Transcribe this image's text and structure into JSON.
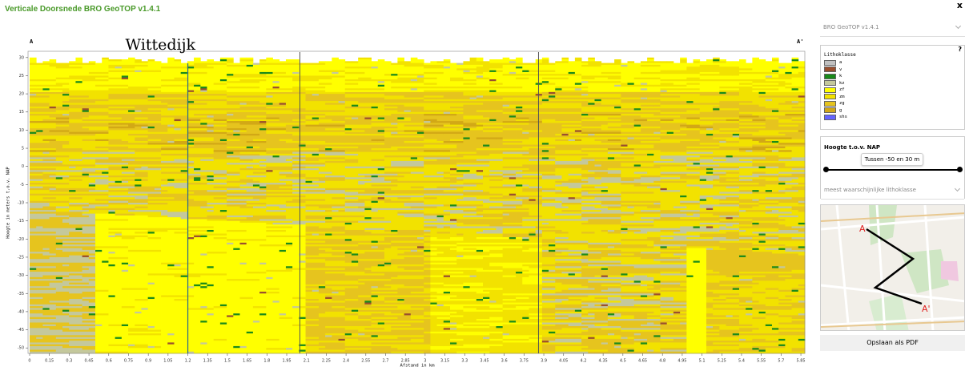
{
  "header": {
    "title": "Verticale Doorsnede BRO GeoTOP v1.4.1"
  },
  "cross_section": {
    "start_label": "A",
    "end_label": "A'",
    "annotation": "Wittedijk",
    "annotation_x": 1.2,
    "section_breaks": [
      2.05,
      3.86
    ],
    "ylabel": "Hoogte in meters t.o.v. NAP",
    "xlabel": "Afstand in km",
    "xlim": [
      0,
      5.88
    ],
    "ylim": [
      -51.5,
      31.5
    ],
    "yticks": [
      30,
      25,
      20,
      15,
      10,
      5,
      0,
      -5,
      -10,
      -15,
      -20,
      -25,
      -30,
      -35,
      -40,
      -45,
      -50
    ],
    "xticks": [
      0,
      0.15,
      0.3,
      0.45,
      0.6,
      0.75,
      0.9,
      1.05,
      1.2,
      1.35,
      1.5,
      1.65,
      1.8,
      1.95,
      2.1,
      2.25,
      2.4,
      2.55,
      2.7,
      2.85,
      3,
      3.15,
      3.3,
      3.45,
      3.6,
      3.75,
      3.9,
      4.05,
      4.2,
      4.35,
      4.5,
      4.65,
      4.8,
      4.95,
      5.1,
      5.25,
      5.4,
      5.55,
      5.7,
      5.85
    ]
  },
  "sidebar": {
    "close": "x",
    "model_select": "BRO GeoTOP v1.4.1",
    "legend": {
      "help": "?",
      "title": "Lithoklasse",
      "items": [
        {
          "label": "a",
          "color": "#c0c0c0"
        },
        {
          "label": "v",
          "color": "#9a4f2e"
        },
        {
          "label": "k",
          "color": "#1a8a1a"
        },
        {
          "label": "kz",
          "color": "#c4c89c"
        },
        {
          "label": "zf",
          "color": "#ffff00"
        },
        {
          "label": "zm",
          "color": "#f2e200"
        },
        {
          "label": "zg",
          "color": "#e6c41e"
        },
        {
          "label": "g",
          "color": "#d2a816"
        },
        {
          "label": "shs",
          "color": "#6464ff"
        }
      ]
    },
    "height_panel": {
      "title": "Hoogte t.o.v. NAP",
      "tooltip": "Tussen -50 en 30 m"
    },
    "display_select": "meest waarschijnlijke lithoklasse",
    "map": {
      "start_label": "A",
      "end_label": "A'"
    },
    "button": "Opslaan als PDF"
  }
}
